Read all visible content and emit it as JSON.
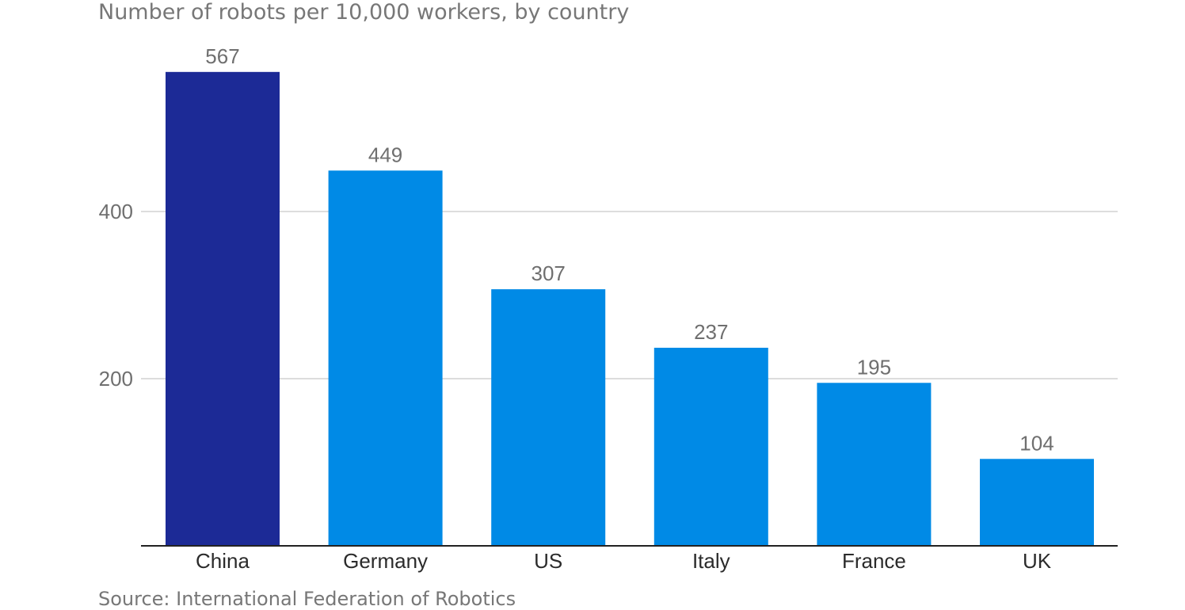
{
  "chart_data": {
    "type": "bar",
    "title": "Number of robots per 10,000 workers, by country",
    "source": "Source: International Federation of Robotics",
    "categories": [
      "China",
      "Germany",
      "US",
      "Italy",
      "France",
      "UK"
    ],
    "values": [
      567,
      449,
      307,
      237,
      195,
      104
    ],
    "value_labels": [
      "567",
      "449",
      "307",
      "237",
      "195",
      "104"
    ],
    "yticks": [
      200,
      400
    ],
    "ytick_labels": [
      "200",
      "400"
    ],
    "ylim": [
      0,
      600
    ],
    "grid": true,
    "legend": "none",
    "colors": {
      "highlight": "#1c2a96",
      "default": "#008ae6",
      "grid": "#dddddd",
      "axis": "#222222"
    },
    "highlight_category": "China"
  }
}
